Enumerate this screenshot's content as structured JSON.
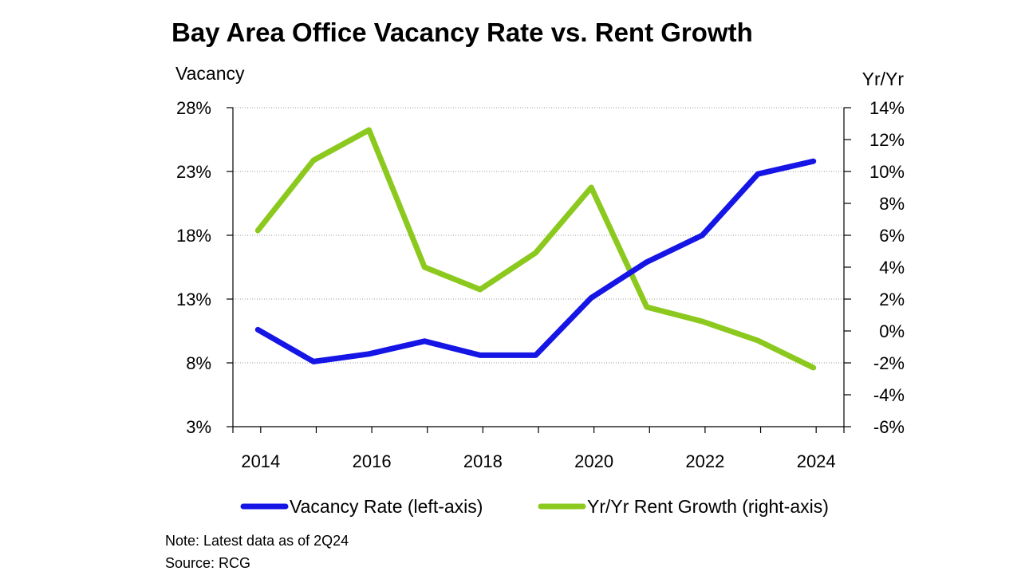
{
  "chart_data": {
    "type": "line",
    "title": "Bay Area Office Vacancy Rate vs. Rent Growth",
    "y_left_label": "Vacancy",
    "y_right_label": "Yr/Yr",
    "x_ticks": [
      "2014",
      "2016",
      "2018",
      "2020",
      "2022",
      "2024"
    ],
    "x_tick_values": [
      2014,
      2016,
      2018,
      2020,
      2022,
      2024
    ],
    "y_left_ticks": [
      "28%",
      "23%",
      "18%",
      "13%",
      "8%",
      "3%"
    ],
    "y_left_tick_values": [
      28,
      23,
      18,
      13,
      8,
      3
    ],
    "y_right_ticks": [
      "14%",
      "12%",
      "10%",
      "8%",
      "6%",
      "4%",
      "2%",
      "0%",
      "-2%",
      "-4%",
      "-6%"
    ],
    "y_right_tick_values": [
      14,
      12,
      10,
      8,
      6,
      4,
      2,
      0,
      -2,
      -4,
      -6
    ],
    "ylim_left": [
      3,
      28
    ],
    "ylim_right": [
      -6,
      14
    ],
    "xlim": [
      2013.5,
      2024.5
    ],
    "grid": true,
    "series": [
      {
        "name": "Vacancy Rate (left-axis)",
        "axis": "left",
        "color": "#1515e6",
        "x": [
          2013.95,
          2014.95,
          2015.95,
          2016.95,
          2017.95,
          2018.95,
          2019.95,
          2020.95,
          2021.95,
          2022.95,
          2023.95
        ],
        "values": [
          10.6,
          8.1,
          8.7,
          9.7,
          8.6,
          8.6,
          13.1,
          15.9,
          18.0,
          22.8,
          23.8
        ]
      },
      {
        "name": "Yr/Yr Rent Growth (right-axis)",
        "axis": "right",
        "color": "#8cc91e",
        "x": [
          2013.95,
          2014.95,
          2015.95,
          2016.95,
          2017.95,
          2018.95,
          2019.95,
          2020.95,
          2021.95,
          2022.95,
          2023.95
        ],
        "values": [
          6.3,
          10.7,
          12.6,
          4.0,
          2.6,
          4.9,
          9.0,
          1.5,
          0.6,
          -0.6,
          -2.3
        ]
      }
    ],
    "legend": [
      "Vacancy Rate (left-axis)",
      "Yr/Yr Rent Growth (right-axis)"
    ],
    "legend_position": "bottom"
  },
  "notes": {
    "note": "Note: Latest data as of 2Q24",
    "source": "Source: RCG"
  }
}
